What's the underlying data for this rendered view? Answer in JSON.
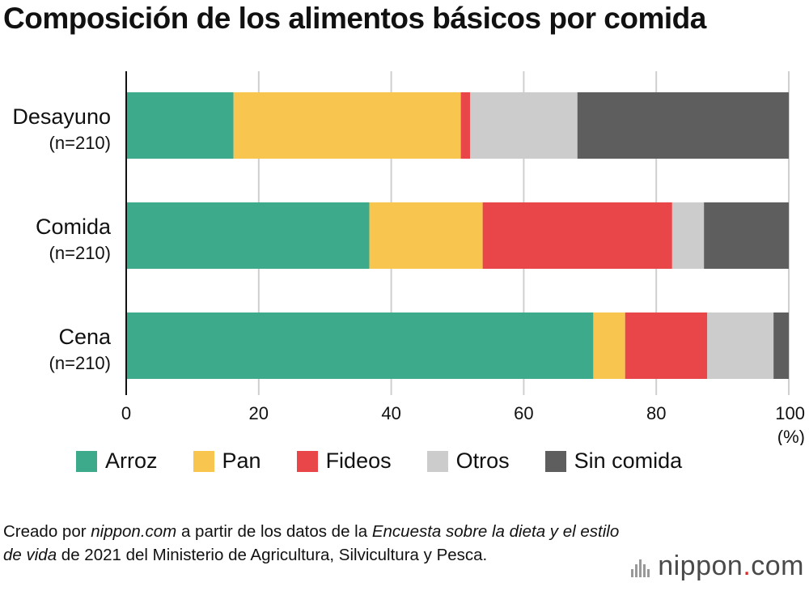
{
  "title": "Composición de los alimentos básicos por comida",
  "colors": {
    "Arroz": "#3eaa8c",
    "Pan": "#f8c54f",
    "Fideos": "#e84649",
    "Otros": "#cccccc",
    "Sin comida": "#5e5e5e"
  },
  "chart_data": {
    "type": "bar",
    "orientation": "horizontal",
    "stacked": true,
    "categories": [
      "Desayuno",
      "Comida",
      "Cena"
    ],
    "category_sublabels": [
      "(n=210)",
      "(n=210)",
      "(n=210)"
    ],
    "series": [
      {
        "name": "Arroz",
        "values": [
          16.2,
          36.7,
          70.5
        ]
      },
      {
        "name": "Pan",
        "values": [
          34.3,
          17.1,
          4.8
        ]
      },
      {
        "name": "Fideos",
        "values": [
          1.4,
          28.6,
          12.4
        ]
      },
      {
        "name": "Otros",
        "values": [
          16.2,
          4.8,
          10.0
        ]
      },
      {
        "name": "Sin comida",
        "values": [
          31.9,
          12.8,
          2.3
        ]
      }
    ],
    "xlim": [
      0,
      100
    ],
    "xticks": [
      "0",
      "20",
      "40",
      "60",
      "80",
      "100"
    ],
    "xunit": "(%)",
    "grid": true,
    "legend_position": "bottom"
  },
  "legend": [
    {
      "label": "Arroz",
      "key": "Arroz"
    },
    {
      "label": "Pan",
      "key": "Pan"
    },
    {
      "label": "Fideos",
      "key": "Fideos"
    },
    {
      "label": "Otros",
      "key": "Otros"
    },
    {
      "label": "Sin comida",
      "key": "Sin comida"
    }
  ],
  "source": {
    "part1": "Creado por ",
    "site": "nippon.com",
    "part2": " a partir de los datos de la ",
    "survey": "Encuesta sobre la dieta y el estilo de vida",
    "part3": " de 2021 del Ministerio de Agricultura, Silvicultura y Pesca."
  },
  "logo": {
    "name": "nippon",
    "dot": ".",
    "tld": "com"
  }
}
